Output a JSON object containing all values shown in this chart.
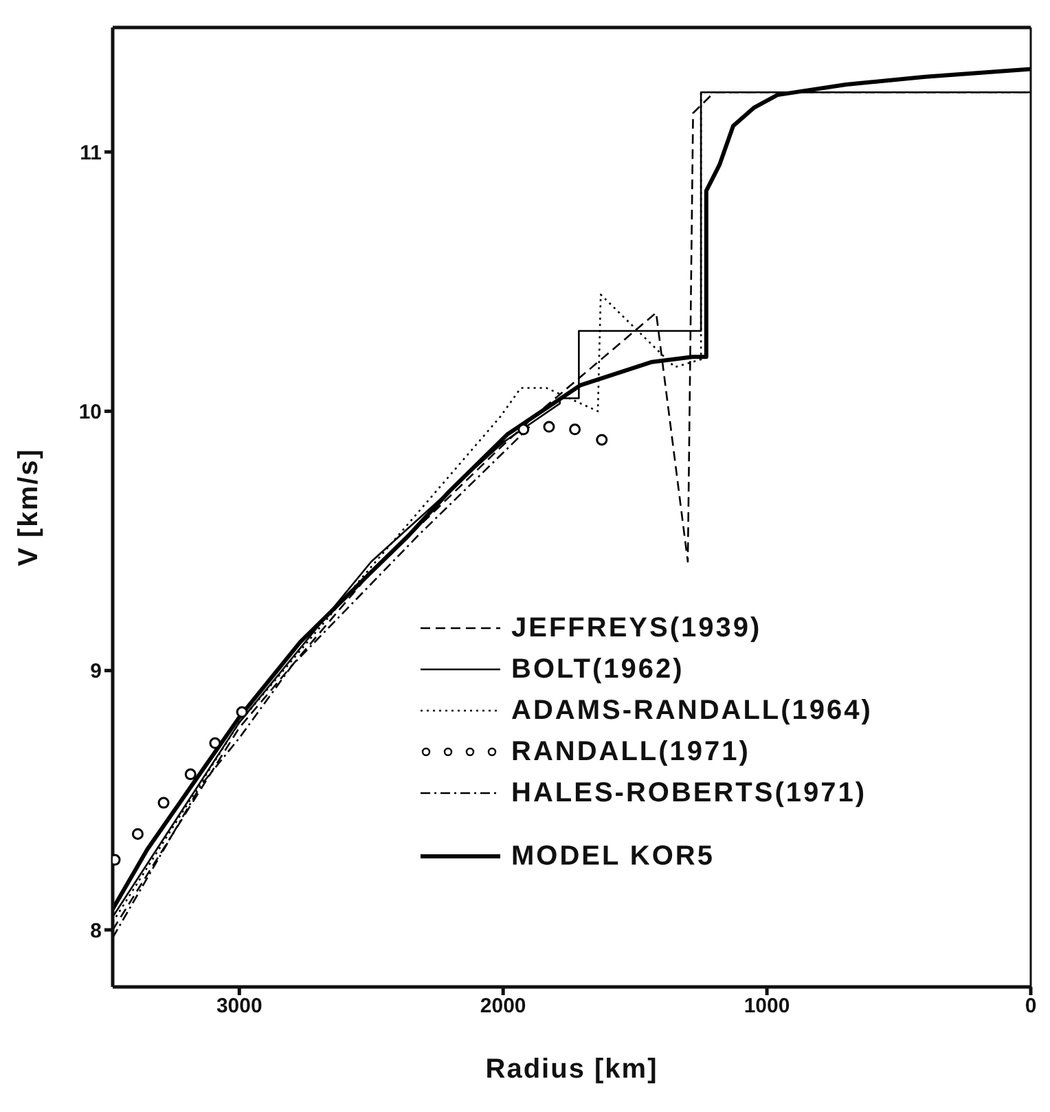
{
  "chart_data": {
    "type": "line",
    "xlabel": "Radius [km]",
    "ylabel": "V [km/s]",
    "xlim": [
      3480,
      0
    ],
    "xticks": [
      3000,
      2000,
      1000,
      0
    ],
    "ylim": [
      7.78,
      11.48
    ],
    "yticks": [
      8,
      9,
      10,
      11
    ],
    "legend": "right",
    "series": [
      {
        "name": "JEFFREYS(1939)",
        "color": "#000000",
        "line_style": "dashed",
        "marker": "none",
        "x": [
          3480,
          3000,
          2500,
          2000,
          1860,
          1420,
          1300,
          1280,
          1200,
          0
        ],
        "values": [
          8.0,
          8.78,
          9.38,
          9.87,
          10.0,
          10.38,
          9.42,
          11.15,
          11.23,
          11.23
        ]
      },
      {
        "name": "BOLT(1962)",
        "color": "#000000",
        "line_style": "solid",
        "marker": "none",
        "x": [
          3480,
          3000,
          2500,
          2000,
          1785,
          1785,
          1713,
          1713,
          1250,
          1250,
          0
        ],
        "values": [
          8.05,
          8.8,
          9.42,
          9.88,
          10.03,
          10.05,
          10.05,
          10.31,
          10.31,
          11.23,
          11.23
        ]
      },
      {
        "name": "ADAMS-RANDALL(1964)",
        "color": "#000000",
        "line_style": "dotted",
        "marker": "none",
        "x": [
          3480,
          3000,
          2500,
          2010,
          1933,
          1836,
          1641,
          1630,
          1349,
          1250,
          1250,
          0
        ],
        "values": [
          8.03,
          8.8,
          9.4,
          9.98,
          10.09,
          10.09,
          10.0,
          10.45,
          10.17,
          10.2,
          11.23,
          11.23
        ]
      },
      {
        "name": "RANDALL(1971)",
        "type": "scatter",
        "color": "#000000",
        "marker": "circle",
        "x": [
          3472,
          3385,
          3287,
          3185,
          3092,
          2990,
          1923,
          1826,
          1728,
          1626
        ],
        "values": [
          8.27,
          8.37,
          8.49,
          8.6,
          8.72,
          8.84,
          9.93,
          9.94,
          9.93,
          9.89
        ]
      },
      {
        "name": "HALES-ROBERTS(1971)",
        "color": "#000000",
        "line_style": "dashdot",
        "marker": "none",
        "x": [
          3480,
          3144,
          3000,
          2800,
          2323,
          2000,
          1900
        ],
        "values": [
          7.97,
          8.56,
          8.74,
          9.02,
          9.52,
          9.84,
          9.94
        ]
      },
      {
        "name": "MODEL  KOR5",
        "color": "#000000",
        "line_style": "solid",
        "marker": "none",
        "x": [
          3480,
          3349,
          3185,
          3000,
          2769,
          2500,
          2359,
          2205,
          1985,
          1708,
          1436,
          1282,
          1230,
          1230,
          1180,
          1128,
          1050,
          960,
          700,
          400,
          0
        ],
        "values": [
          8.08,
          8.31,
          8.55,
          8.82,
          9.11,
          9.38,
          9.52,
          9.69,
          9.91,
          10.1,
          10.19,
          10.21,
          10.21,
          10.85,
          10.95,
          11.1,
          11.17,
          11.22,
          11.26,
          11.29,
          11.32
        ]
      }
    ]
  }
}
